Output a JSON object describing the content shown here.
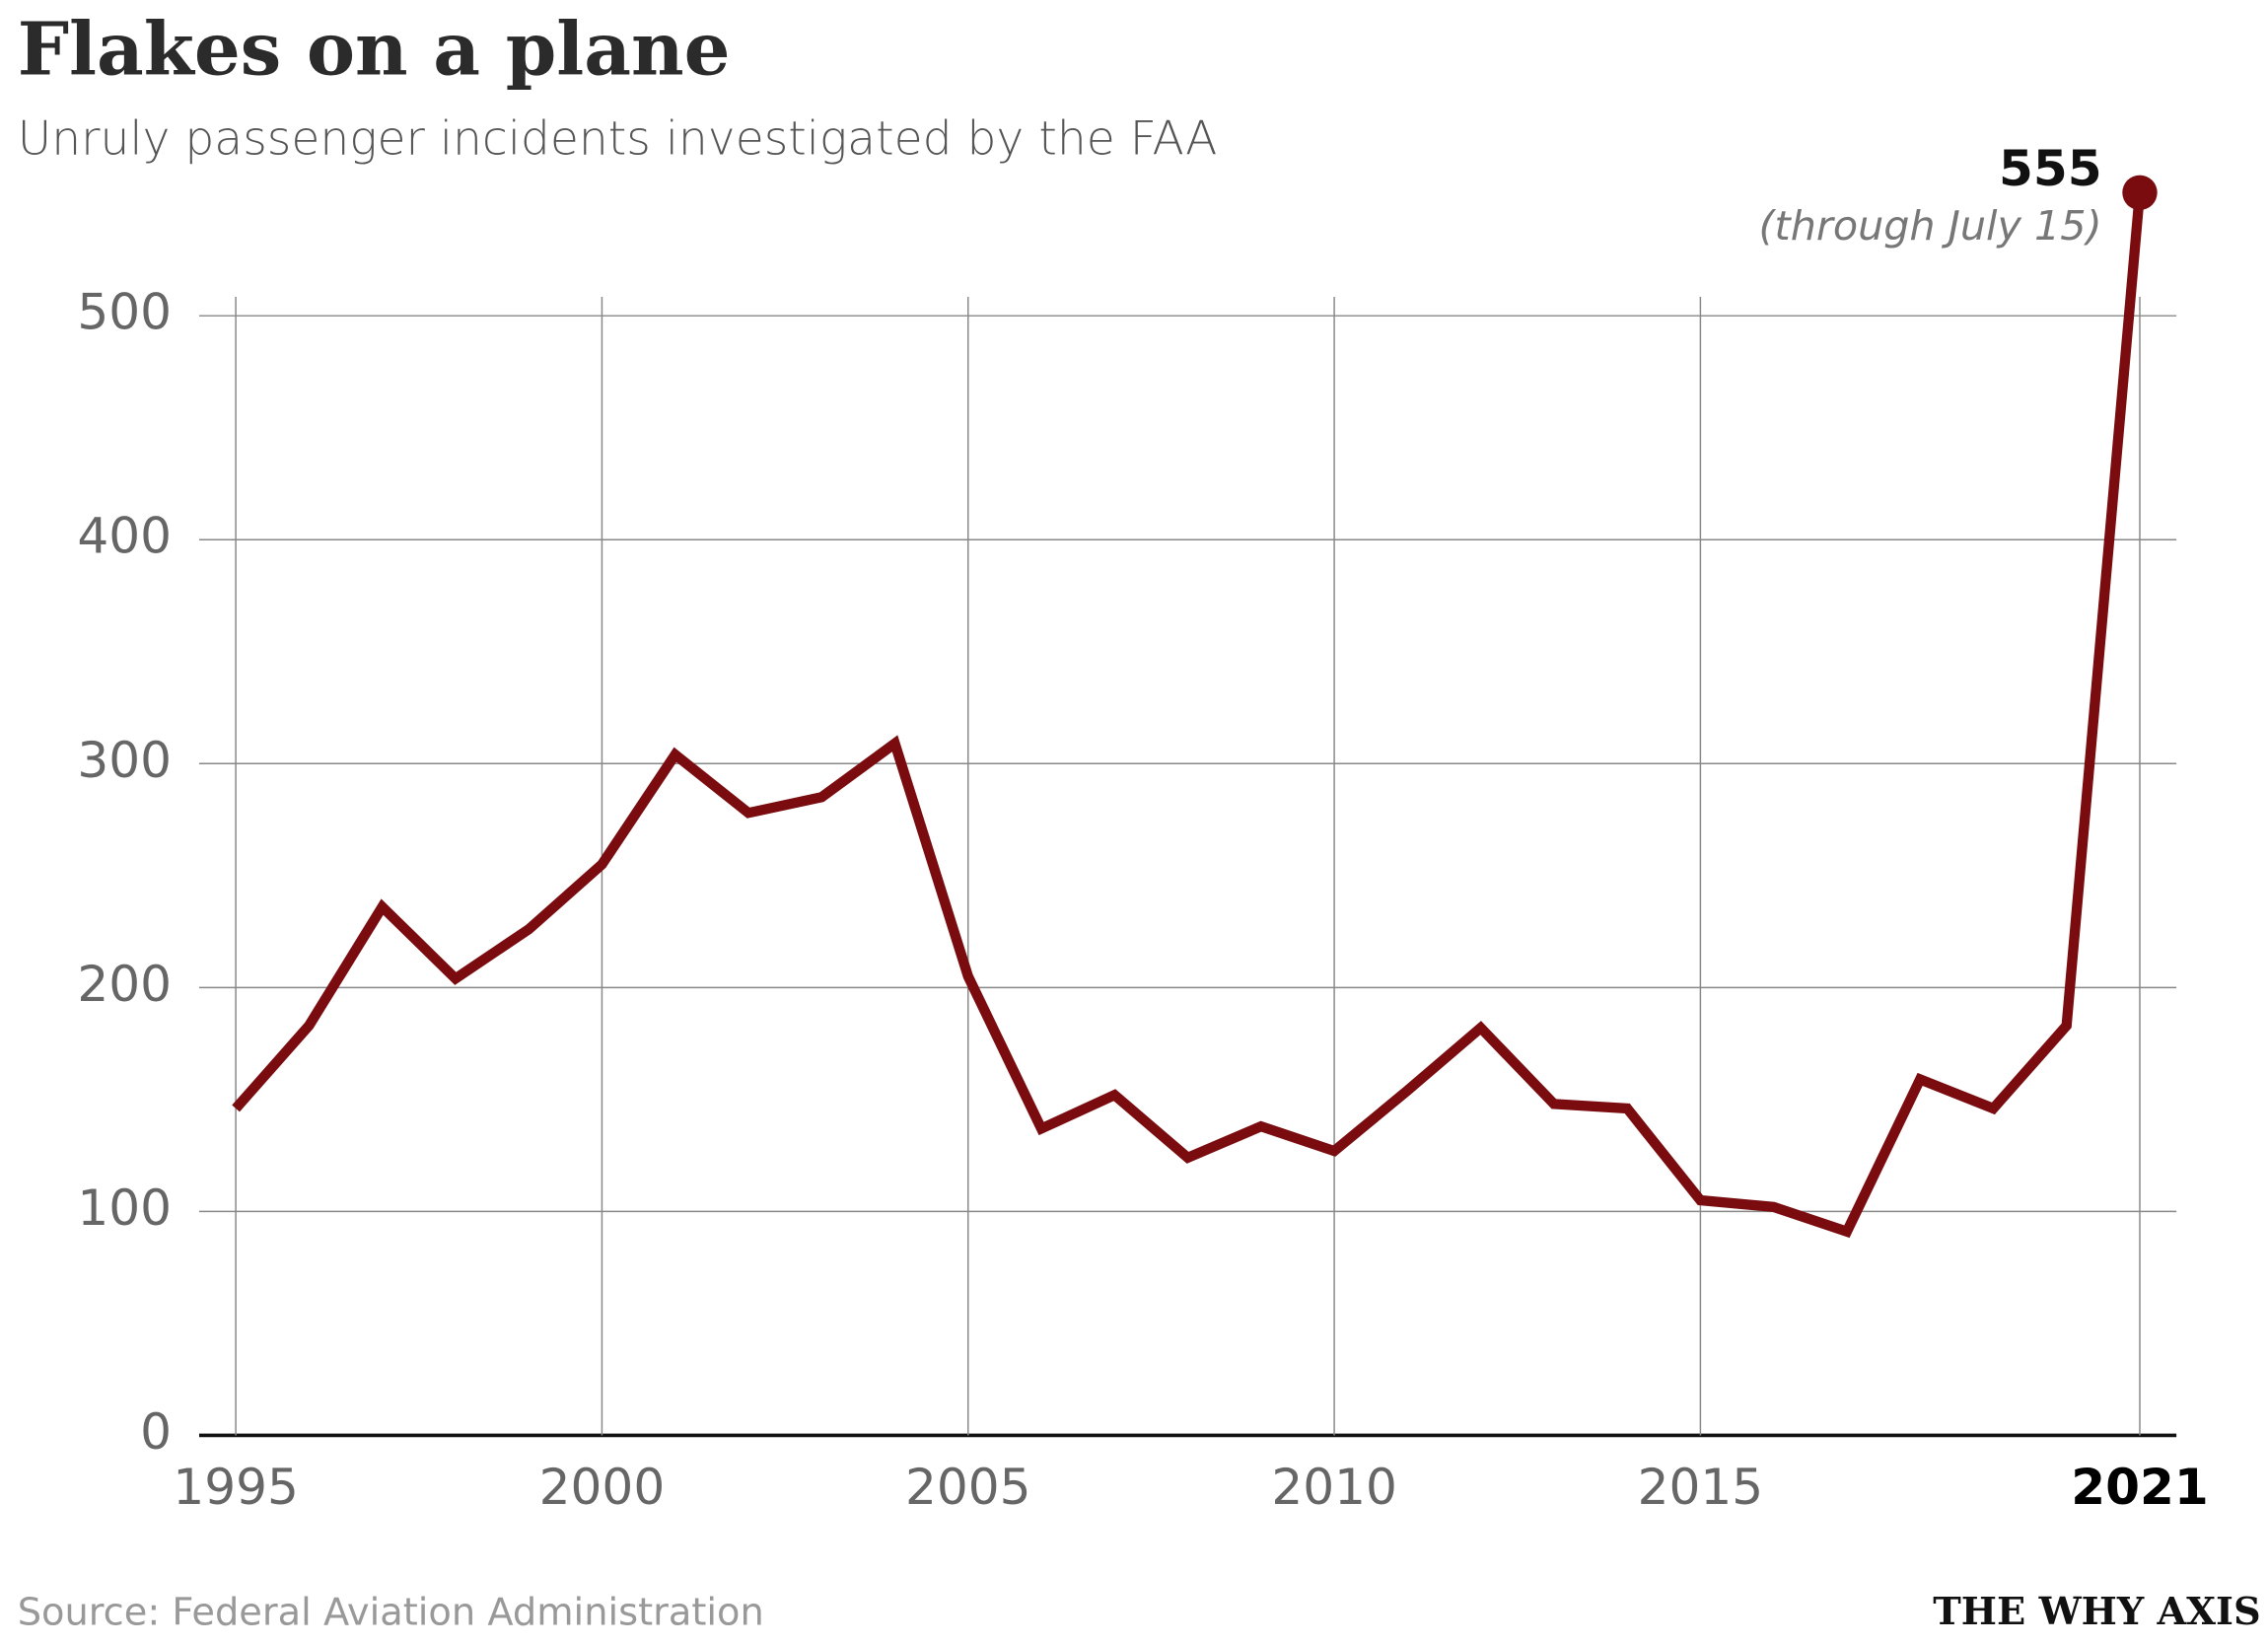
{
  "chart_data": {
    "type": "line",
    "title": "Flakes on a plane",
    "subtitle": "Unruly passenger incidents investigated by the FAA",
    "x": [
      1995,
      1996,
      1997,
      1998,
      1999,
      2000,
      2001,
      2002,
      2003,
      2004,
      2005,
      2006,
      2007,
      2008,
      2009,
      2010,
      2011,
      2012,
      2013,
      2014,
      2015,
      2016,
      2017,
      2018,
      2019,
      2020,
      2021
    ],
    "series": [
      {
        "name": "Unruly passenger incidents",
        "color": "#7a0c10",
        "values": [
          146,
          183,
          236,
          204,
          226,
          255,
          304,
          278,
          285,
          309,
          205,
          137,
          152,
          124,
          138,
          127,
          154,
          182,
          148,
          146,
          105,
          102,
          91,
          159,
          146,
          183,
          555
        ]
      }
    ],
    "annotation": "(through July 15)",
    "xlim": [
      1994.5,
      2021.5
    ],
    "xticks": [
      1995,
      2000,
      2005,
      2010,
      2015,
      2021
    ],
    "ylim": [
      0,
      500
    ],
    "yticks": [
      0,
      100,
      200,
      300,
      400,
      500
    ],
    "grid": true,
    "source": "Source: Federal Aviation Administration",
    "brand": "THE WHY AXIS"
  }
}
